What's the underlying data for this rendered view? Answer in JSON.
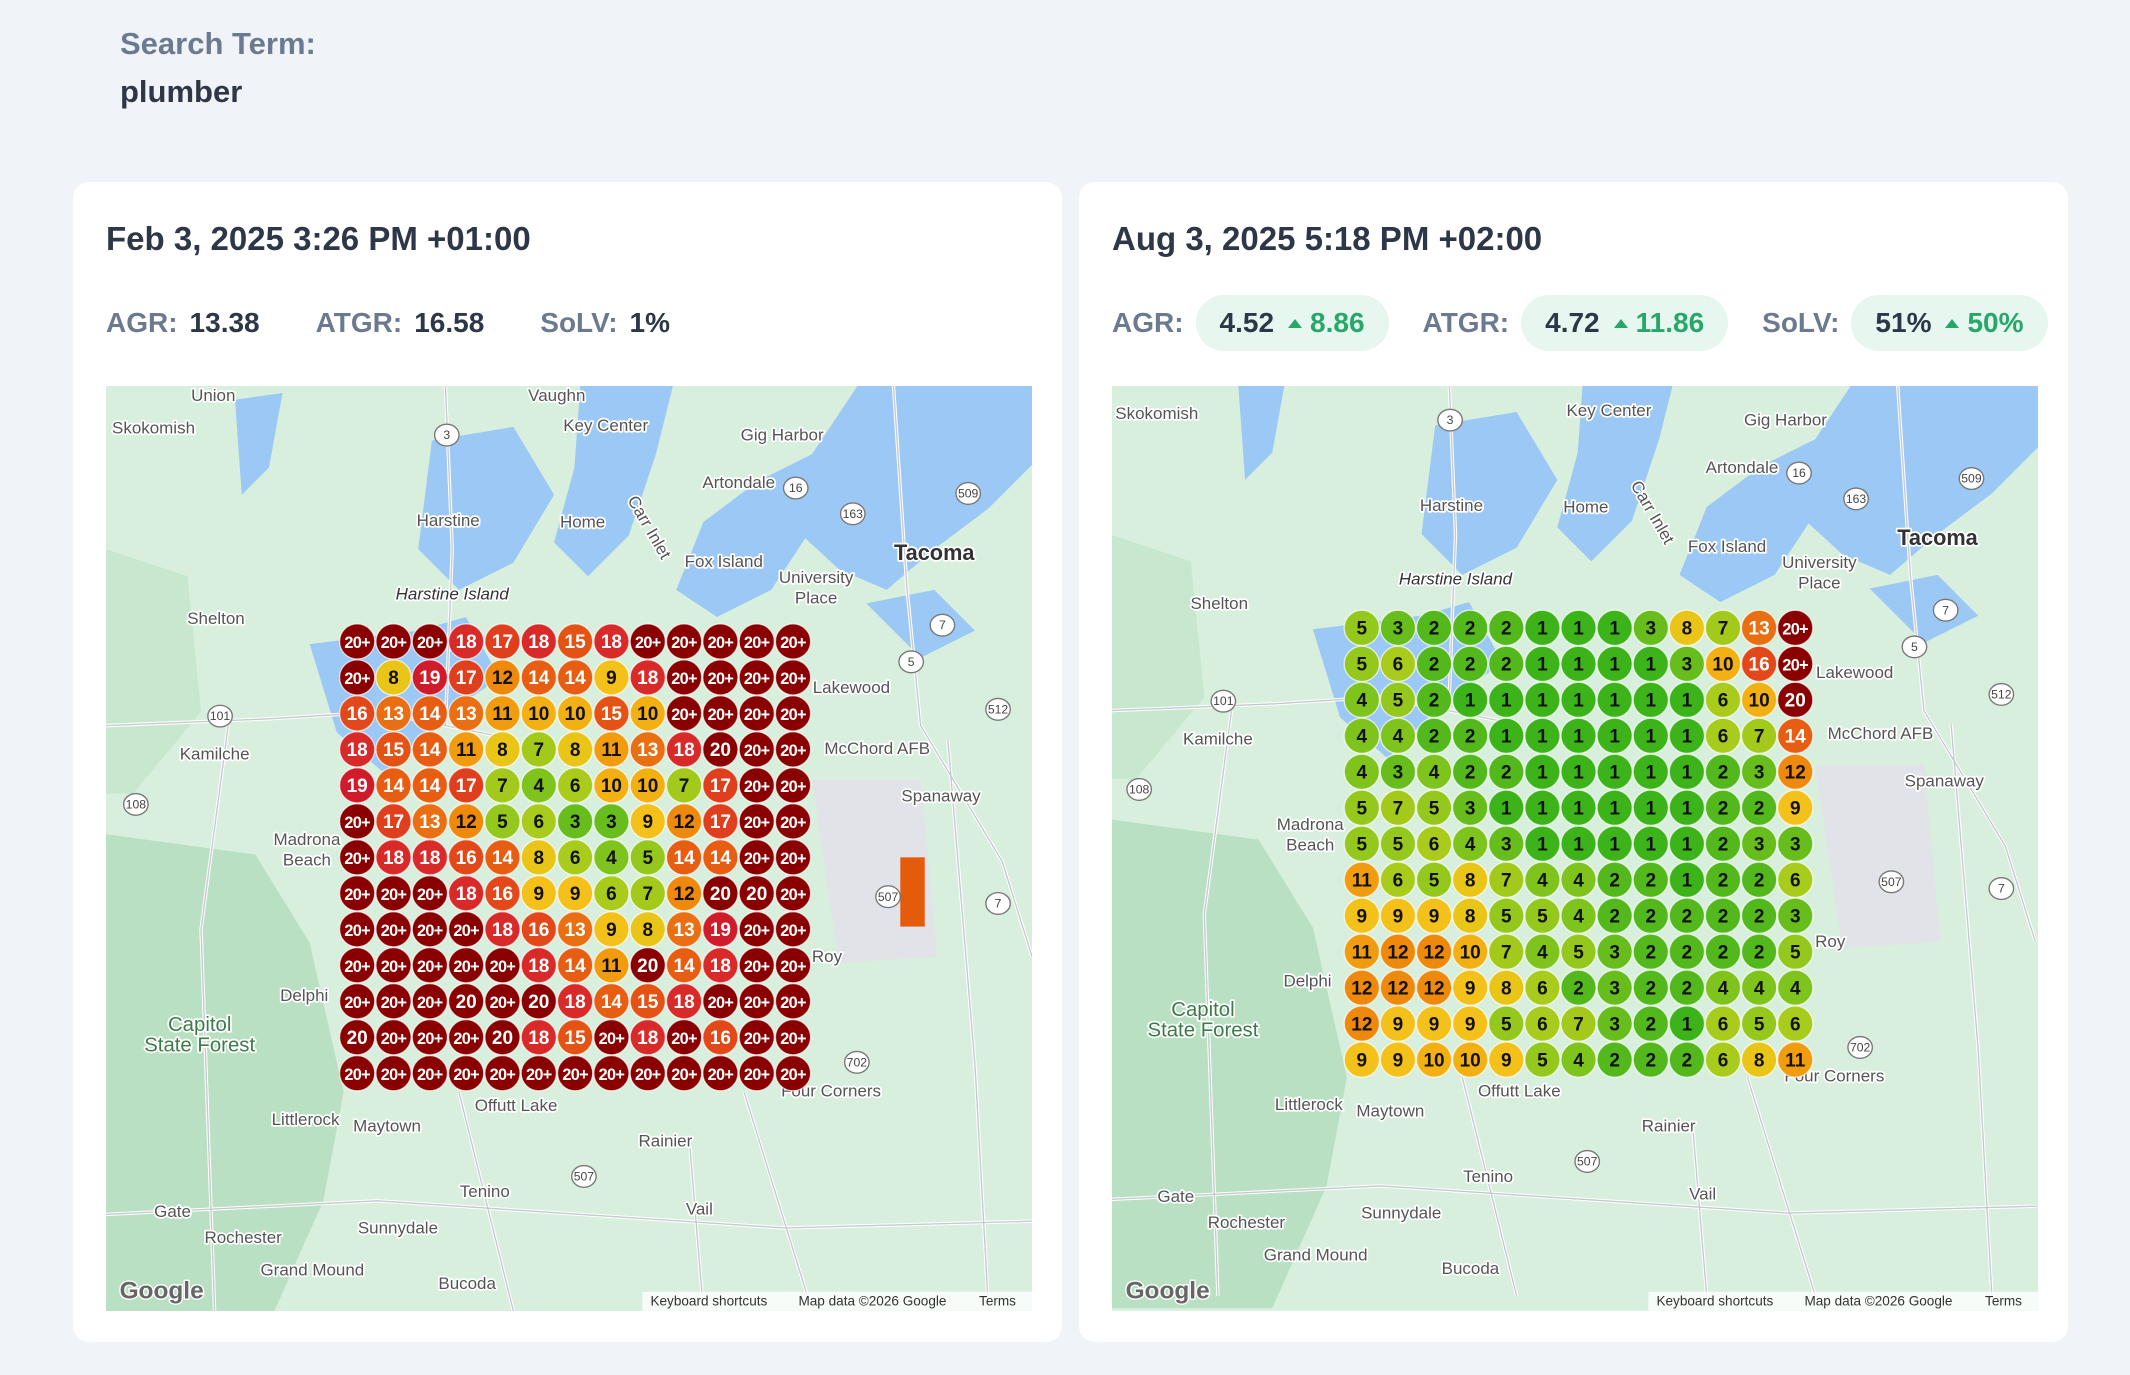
{
  "header": {
    "label": "Search Term:",
    "value": "plumber"
  },
  "panels": [
    {
      "date": "Feb 3, 2025 3:26 PM +01:00",
      "metrics": [
        {
          "label": "AGR:",
          "value": "13.38"
        },
        {
          "label": "ATGR:",
          "value": "16.58"
        },
        {
          "label": "SoLV:",
          "value": "1%"
        }
      ],
      "grid": [
        [
          "20+",
          "20+",
          "20+",
          "18",
          "17",
          "18",
          "15",
          "18",
          "20+",
          "20+",
          "20+",
          "20+",
          "20+"
        ],
        [
          "20+",
          "8",
          "19",
          "17",
          "12",
          "14",
          "14",
          "9",
          "18",
          "20+",
          "20+",
          "20+",
          "20+"
        ],
        [
          "16",
          "13",
          "14",
          "13",
          "11",
          "10",
          "10",
          "15",
          "10",
          "20+",
          "20+",
          "20+",
          "20+"
        ],
        [
          "18",
          "15",
          "14",
          "11",
          "8",
          "7",
          "8",
          "11",
          "13",
          "18",
          "20",
          "20+",
          "20+"
        ],
        [
          "19",
          "14",
          "14",
          "17",
          "7",
          "4",
          "6",
          "10",
          "10",
          "7",
          "17",
          "20+",
          "20+"
        ],
        [
          "20+",
          "17",
          "13",
          "12",
          "5",
          "6",
          "3",
          "3",
          "9",
          "12",
          "17",
          "20+",
          "20+"
        ],
        [
          "20+",
          "18",
          "18",
          "16",
          "14",
          "8",
          "6",
          "4",
          "5",
          "14",
          "14",
          "20+",
          "20+"
        ],
        [
          "20+",
          "20+",
          "20+",
          "18",
          "16",
          "9",
          "9",
          "6",
          "7",
          "12",
          "20",
          "20",
          "20+"
        ],
        [
          "20+",
          "20+",
          "20+",
          "20+",
          "18",
          "16",
          "13",
          "9",
          "8",
          "13",
          "19",
          "20+",
          "20+"
        ],
        [
          "20+",
          "20+",
          "20+",
          "20+",
          "20+",
          "18",
          "14",
          "11",
          "20",
          "14",
          "18",
          "20+",
          "20+"
        ],
        [
          "20+",
          "20+",
          "20+",
          "20",
          "20+",
          "20",
          "18",
          "14",
          "15",
          "18",
          "20+",
          "20+",
          "20+"
        ],
        [
          "20",
          "20+",
          "20+",
          "20+",
          "20",
          "18",
          "15",
          "20+",
          "18",
          "20+",
          "16",
          "20+",
          "20+"
        ],
        [
          "20+",
          "20+",
          "20+",
          "20+",
          "20+",
          "20+",
          "20+",
          "20+",
          "20+",
          "20+",
          "20+",
          "20+",
          "20+"
        ]
      ],
      "map_labels": [
        "Skokomish",
        "Key Center",
        "Gig Harbor",
        "Artondale",
        "Harstine",
        "Home",
        "Carr Inlet",
        "Fox Island",
        "Tacoma",
        "University Place",
        "Harstine Island",
        "Shelton",
        "Lakewood",
        "Kamilche",
        "McChord AFB",
        "Spanaway",
        "Madrona Beach",
        "Delphi",
        "Roy",
        "Capitol State Forest",
        "Littlerock",
        "Maytown",
        "Offutt Lake",
        "Rainier",
        "Four Corners",
        "Tenino",
        "Vail",
        "Gate",
        "Rochester",
        "Sunnydale",
        "Grand Mound",
        "Bucoda",
        "Union",
        "Vaughn"
      ],
      "routes": [
        "3",
        "16",
        "163",
        "509",
        "7",
        "5",
        "101",
        "512",
        "108",
        "507",
        "7",
        "702",
        "507"
      ],
      "map_footer": {
        "logo": "Google",
        "shortcuts": "Keyboard shortcuts",
        "attribution": "Map data ©2026 Google",
        "terms": "Terms"
      }
    },
    {
      "date": "Aug 3, 2025 5:18 PM +02:00",
      "metrics": [
        {
          "label": "AGR:",
          "value": "4.52",
          "change": "8.86"
        },
        {
          "label": "ATGR:",
          "value": "4.72",
          "change": "11.86"
        },
        {
          "label": "SoLV:",
          "value": "51%",
          "change": "50%"
        }
      ],
      "grid": [
        [
          "5",
          "3",
          "2",
          "2",
          "2",
          "1",
          "1",
          "1",
          "3",
          "8",
          "7",
          "13",
          "20+"
        ],
        [
          "5",
          "6",
          "2",
          "2",
          "2",
          "1",
          "1",
          "1",
          "1",
          "3",
          "10",
          "16",
          "20+"
        ],
        [
          "4",
          "5",
          "2",
          "1",
          "1",
          "1",
          "1",
          "1",
          "1",
          "1",
          "6",
          "10",
          "20"
        ],
        [
          "4",
          "4",
          "2",
          "2",
          "1",
          "1",
          "1",
          "1",
          "1",
          "1",
          "6",
          "7",
          "14"
        ],
        [
          "4",
          "3",
          "4",
          "2",
          "2",
          "1",
          "1",
          "1",
          "1",
          "1",
          "2",
          "3",
          "12"
        ],
        [
          "5",
          "7",
          "5",
          "3",
          "1",
          "1",
          "1",
          "1",
          "1",
          "1",
          "2",
          "2",
          "9"
        ],
        [
          "5",
          "5",
          "6",
          "4",
          "3",
          "1",
          "1",
          "1",
          "1",
          "1",
          "2",
          "3",
          "3"
        ],
        [
          "11",
          "6",
          "5",
          "8",
          "7",
          "4",
          "4",
          "2",
          "2",
          "1",
          "2",
          "2",
          "6"
        ],
        [
          "9",
          "9",
          "9",
          "8",
          "5",
          "5",
          "4",
          "2",
          "2",
          "2",
          "2",
          "2",
          "3"
        ],
        [
          "11",
          "12",
          "12",
          "10",
          "7",
          "4",
          "5",
          "3",
          "2",
          "2",
          "2",
          "2",
          "5"
        ],
        [
          "12",
          "12",
          "12",
          "9",
          "8",
          "6",
          "2",
          "3",
          "2",
          "2",
          "4",
          "4",
          "4"
        ],
        [
          "12",
          "9",
          "9",
          "9",
          "5",
          "6",
          "7",
          "3",
          "2",
          "1",
          "6",
          "5",
          "6"
        ],
        [
          "9",
          "9",
          "10",
          "10",
          "9",
          "5",
          "4",
          "2",
          "2",
          "2",
          "6",
          "8",
          "11"
        ]
      ],
      "map_labels": [
        "Skokomish",
        "Key Center",
        "Gig Harbor",
        "Artondale",
        "Harstine",
        "Home",
        "Carr Inlet",
        "Fox Island",
        "Tacoma",
        "University Place",
        "Harstine Island",
        "Shelton",
        "Lakewood",
        "Kamilche",
        "McChord AFB",
        "Spanaway",
        "Madrona Beach",
        "Delphi",
        "Roy",
        "Capitol State Forest",
        "Littlerock",
        "Maytown",
        "Offutt Lake",
        "Rainier",
        "Four Corners",
        "Tenino",
        "Vail",
        "Gate",
        "Rochester",
        "Sunnydale",
        "Grand Mound",
        "Bucoda"
      ],
      "routes": [
        "3",
        "16",
        "163",
        "509",
        "7",
        "5",
        "101",
        "512",
        "108",
        "507",
        "7",
        "702",
        "507"
      ],
      "map_footer": {
        "logo": "Google",
        "shortcuts": "Keyboard shortcuts",
        "attribution": "Map data ©2026 Google",
        "terms": "Terms"
      }
    }
  ]
}
